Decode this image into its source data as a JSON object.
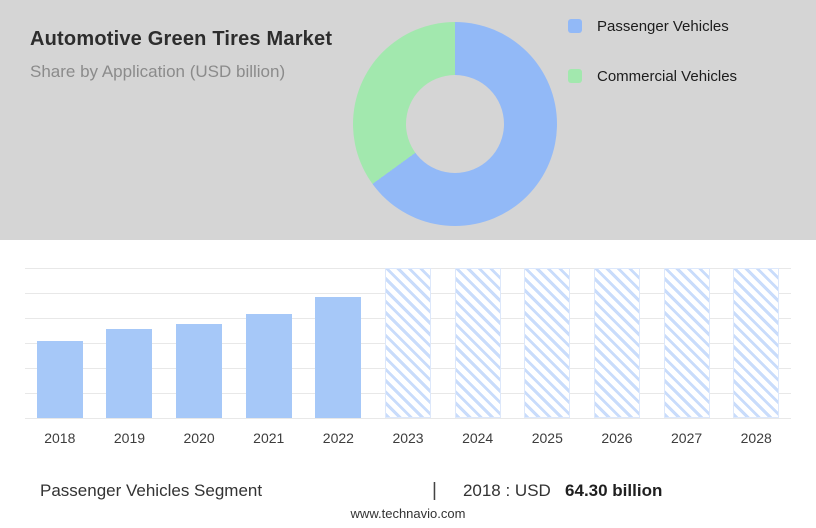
{
  "header": {
    "title": "Automotive Green Tires Market",
    "subtitle": "Share by Application (USD billion)"
  },
  "legend": {
    "items": [
      {
        "label": "Passenger Vehicles",
        "color": "#92b9f7"
      },
      {
        "label": "Commercial Vehicles",
        "color": "#a2e8ae"
      }
    ]
  },
  "chart_data": [
    {
      "type": "pie",
      "title": "Share by Application (USD billion)",
      "labels": [
        "Passenger Vehicles",
        "Commercial Vehicles"
      ],
      "values": [
        65,
        35
      ],
      "colors": [
        "#92b9f7",
        "#a2e8ae"
      ],
      "donut": true,
      "legend_position": "right"
    },
    {
      "type": "bar",
      "categories": [
        "2018",
        "2019",
        "2020",
        "2021",
        "2022",
        "2023",
        "2024",
        "2025",
        "2026",
        "2027",
        "2028"
      ],
      "values": [
        64.3,
        74.2,
        78.3,
        86.5,
        100.6,
        null,
        null,
        null,
        null,
        null,
        null
      ],
      "forecast_categories": [
        "2023",
        "2024",
        "2025",
        "2026",
        "2027",
        "2028"
      ],
      "forecast_style": "hatched",
      "bar_color": "#a6c8f8",
      "ylim": [
        0,
        125
      ],
      "grid": true,
      "xlabel": "",
      "ylabel": ""
    }
  ],
  "footer": {
    "segment_label": "Passenger Vehicles Segment",
    "separator": "|",
    "value_prefix": "2018 : USD",
    "value_bold": "64.30 billion"
  },
  "website": "www.technavio.com"
}
